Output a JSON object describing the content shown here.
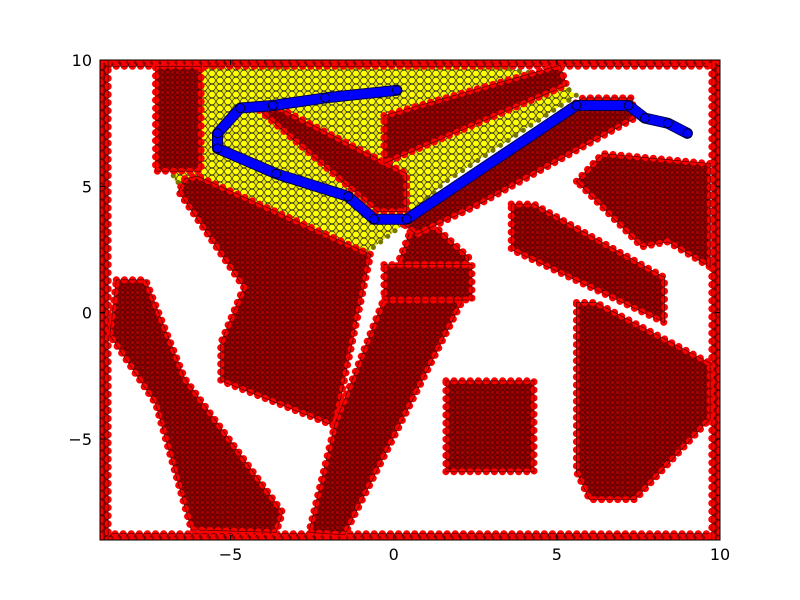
{
  "chart_data": {
    "type": "scatter",
    "title": "",
    "xlabel": "",
    "ylabel": "",
    "xlim": [
      -9,
      10
    ],
    "ylim": [
      -9,
      10
    ],
    "grid": false,
    "legend": "none",
    "x_ticks": [
      {
        "value": -5,
        "label": "−5"
      },
      {
        "value": 0,
        "label": "0"
      },
      {
        "value": 5,
        "label": "5"
      },
      {
        "value": 10,
        "label": "10"
      }
    ],
    "y_ticks": [
      {
        "value": -5,
        "label": "−5"
      },
      {
        "value": 0,
        "label": "0"
      },
      {
        "value": 5,
        "label": "5"
      },
      {
        "value": 10,
        "label": "10"
      }
    ],
    "colors": {
      "obstacle_fill": "#8b0000",
      "obstacle_marker": "#ff0000",
      "explored_marker": "#ffff00",
      "path_marker": "#0000ff",
      "marker_edge": "#000000"
    },
    "series": [
      {
        "role": "obstacles",
        "color": "#ff0000",
        "regions": [
          {
            "id": "boundary-bottom",
            "polygon": [
              [
                -9,
                -9
              ],
              [
                10,
                -9
              ],
              [
                10,
                -8.75
              ],
              [
                -9,
                -8.75
              ]
            ]
          },
          {
            "id": "boundary-top",
            "polygon": [
              [
                -9,
                9.75
              ],
              [
                10,
                9.75
              ],
              [
                10,
                10
              ],
              [
                -9,
                10
              ]
            ]
          },
          {
            "id": "boundary-left",
            "polygon": [
              [
                -9,
                -9
              ],
              [
                -8.75,
                -9
              ],
              [
                -8.75,
                10
              ],
              [
                -9,
                10
              ]
            ]
          },
          {
            "id": "boundary-right",
            "polygon": [
              [
                9.75,
                -9
              ],
              [
                10,
                -9
              ],
              [
                10,
                10
              ],
              [
                9.75,
                10
              ]
            ]
          },
          {
            "id": "top-left-block",
            "polygon": [
              [
                -7.3,
                9.75
              ],
              [
                -5.9,
                9.75
              ],
              [
                -5.9,
                5.6
              ],
              [
                -7.3,
                5.6
              ]
            ]
          },
          {
            "id": "central-diagonal",
            "polygon": [
              [
                -4.2,
                8.1
              ],
              [
                -3.5,
                8.1
              ],
              [
                0.4,
                5.5
              ],
              [
                0.4,
                4.0
              ],
              [
                -0.5,
                4.0
              ]
            ]
          },
          {
            "id": "upper-right-diagonal",
            "polygon": [
              [
                -0.3,
                7.8
              ],
              [
                5.1,
                9.8
              ],
              [
                5.3,
                9.0
              ],
              [
                -0.3,
                5.9
              ]
            ]
          },
          {
            "id": "left-diagonal-wing",
            "polygon": [
              [
                -6.4,
                5.3
              ],
              [
                -6.0,
                5.4
              ],
              [
                -0.7,
                2.3
              ],
              [
                -1.4,
                -2.0
              ],
              [
                -1.8,
                -4.5
              ],
              [
                -5.3,
                -2.7
              ],
              [
                -5.3,
                -1.2
              ],
              [
                -4.6,
                1.0
              ],
              [
                -6.6,
                4.8
              ]
            ]
          },
          {
            "id": "left-lower-leg",
            "polygon": [
              [
                -8.5,
                1.3
              ],
              [
                -7.6,
                1.3
              ],
              [
                -6.4,
                -2.6
              ],
              [
                -3.4,
                -7.9
              ],
              [
                -3.6,
                -8.7
              ],
              [
                -6.2,
                -8.6
              ],
              [
                -7.3,
                -3.6
              ],
              [
                -8.7,
                -0.9
              ]
            ]
          },
          {
            "id": "center-lower-leg",
            "polygon": [
              [
                0.5,
                3.2
              ],
              [
                1.2,
                3.5
              ],
              [
                2.3,
                2.2
              ],
              [
                2.2,
                0.7
              ],
              [
                -1.5,
                -8.8
              ],
              [
                -2.6,
                -8.7
              ],
              [
                -1.8,
                -4.4
              ]
            ]
          },
          {
            "id": "long-diagonal-beam",
            "polygon": [
              [
                0.3,
                3.5
              ],
              [
                5.8,
                8.5
              ],
              [
                7.3,
                8.5
              ],
              [
                7.4,
                7.7
              ],
              [
                2.5,
                4.2
              ],
              [
                0.7,
                3.1
              ]
            ]
          },
          {
            "id": "small-center-block",
            "polygon": [
              [
                -0.3,
                1.9
              ],
              [
                2.4,
                1.9
              ],
              [
                2.4,
                0.5
              ],
              [
                -0.3,
                0.5
              ]
            ]
          },
          {
            "id": "right-upper-block",
            "polygon": [
              [
                5.6,
                5.2
              ],
              [
                6.4,
                6.3
              ],
              [
                9.7,
                5.9
              ],
              [
                9.7,
                1.8
              ],
              [
                8.4,
                2.8
              ],
              [
                7.6,
                2.6
              ]
            ]
          },
          {
            "id": "right-middle-beam",
            "polygon": [
              [
                3.6,
                4.3
              ],
              [
                4.3,
                4.3
              ],
              [
                8.3,
                1.4
              ],
              [
                8.3,
                -0.4
              ],
              [
                3.6,
                2.5
              ]
            ]
          },
          {
            "id": "right-lower-block",
            "polygon": [
              [
                5.6,
                0.4
              ],
              [
                6.2,
                0.4
              ],
              [
                9.7,
                -2.0
              ],
              [
                9.7,
                -4.2
              ],
              [
                7.4,
                -7.4
              ],
              [
                6.0,
                -7.4
              ],
              [
                5.6,
                -6.3
              ]
            ]
          },
          {
            "id": "bottom-center-block",
            "polygon": [
              [
                1.6,
                -2.7
              ],
              [
                4.3,
                -2.7
              ],
              [
                4.3,
                -6.3
              ],
              [
                1.6,
                -6.3
              ]
            ]
          }
        ]
      },
      {
        "role": "explored",
        "color": "#ffff00",
        "regions": [
          {
            "id": "explored-area",
            "polygon": [
              [
                -5.9,
                9.75
              ],
              [
                3.2,
                9.75
              ],
              [
                4.9,
                9.3
              ],
              [
                5.6,
                8.6
              ],
              [
                4.3,
                7.5
              ],
              [
                1.5,
                5.1
              ],
              [
                0.3,
                3.5
              ],
              [
                -0.8,
                2.4
              ],
              [
                -1.4,
                2.6
              ],
              [
                -6.7,
                5.2
              ],
              [
                -6.8,
                5.6
              ],
              [
                -6.0,
                5.8
              ],
              [
                -5.9,
                6.3
              ]
            ]
          }
        ]
      },
      {
        "role": "path",
        "color": "#0000ff",
        "points": [
          [
            0.1,
            8.8
          ],
          [
            -2.1,
            8.5
          ],
          [
            -3.7,
            8.2
          ],
          [
            -4.7,
            8.1
          ],
          [
            -5.4,
            7.1
          ],
          [
            -5.4,
            6.5
          ],
          [
            -3.6,
            5.5
          ],
          [
            -1.4,
            4.6
          ],
          [
            -0.6,
            3.7
          ],
          [
            0.4,
            3.7
          ],
          [
            5.6,
            8.2
          ],
          [
            7.2,
            8.2
          ],
          [
            7.7,
            7.7
          ],
          [
            8.4,
            7.5
          ],
          [
            9.0,
            7.1
          ]
        ]
      }
    ]
  }
}
